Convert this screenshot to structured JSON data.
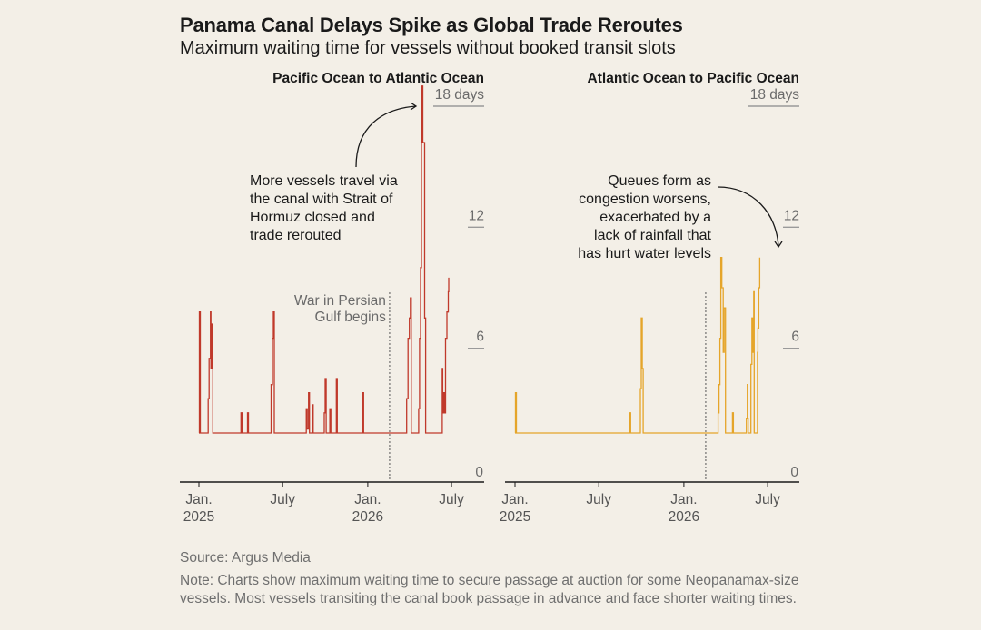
{
  "title": "Panama Canal Delays Spike as Global Trade Reroutes",
  "subtitle": "Maximum waiting time for vessels without booked transit slots",
  "source": "Source: Argus Media",
  "note": "Note: Charts show maximum waiting time to secure passage at auction for some Neopanamax-size vessels. Most vessels transiting the canal book passage in advance and face shorter waiting times.",
  "chart_data": [
    {
      "type": "line",
      "title": "Pacific Ocean to Atlantic Ocean",
      "color": "#c0392b",
      "y_unit": "days",
      "ylim": [
        0,
        18
      ],
      "y_ticks": [
        {
          "value": 0,
          "label": "0"
        },
        {
          "value": 6,
          "label": "6"
        },
        {
          "value": 12,
          "label": "12"
        },
        {
          "value": 18,
          "label": "18 days"
        }
      ],
      "x_ticks": [
        {
          "date": "2025-01-01",
          "line1": "Jan.",
          "line2": "2025"
        },
        {
          "date": "2025-07-01",
          "line1": "July",
          "line2": ""
        },
        {
          "date": "2026-01-01",
          "line1": "Jan.",
          "line2": "2026"
        },
        {
          "date": "2026-07-01",
          "line1": "July",
          "line2": ""
        }
      ],
      "event": {
        "date": "2026-03-01",
        "label_lines": [
          "War in Persian",
          "Gulf begins"
        ]
      },
      "annotation": {
        "lines": [
          "More vessels travel via",
          "the canal with Strait of",
          "Hormuz closed and",
          "trade rerouted"
        ]
      },
      "points": [
        [
          "2025-01-01",
          1.8
        ],
        [
          "2025-01-02",
          7.8
        ],
        [
          "2025-01-04",
          1.8
        ],
        [
          "2025-01-20",
          1.8
        ],
        [
          "2025-01-21",
          3.5
        ],
        [
          "2025-01-23",
          5.5
        ],
        [
          "2025-01-26",
          7.8
        ],
        [
          "2025-01-27",
          5.0
        ],
        [
          "2025-01-29",
          7.2
        ],
        [
          "2025-01-31",
          1.8
        ],
        [
          "2025-04-01",
          1.8
        ],
        [
          "2025-04-02",
          2.8
        ],
        [
          "2025-04-04",
          1.8
        ],
        [
          "2025-04-15",
          1.8
        ],
        [
          "2025-04-16",
          2.8
        ],
        [
          "2025-04-18",
          1.8
        ],
        [
          "2025-06-05",
          1.8
        ],
        [
          "2025-06-06",
          4.2
        ],
        [
          "2025-06-09",
          6.5
        ],
        [
          "2025-06-11",
          7.8
        ],
        [
          "2025-06-13",
          1.8
        ],
        [
          "2025-08-20",
          1.8
        ],
        [
          "2025-08-21",
          3.0
        ],
        [
          "2025-08-23",
          2.0
        ],
        [
          "2025-08-26",
          3.8
        ],
        [
          "2025-08-28",
          1.8
        ],
        [
          "2025-09-02",
          1.8
        ],
        [
          "2025-09-03",
          3.2
        ],
        [
          "2025-09-05",
          1.8
        ],
        [
          "2025-09-28",
          1.8
        ],
        [
          "2025-09-29",
          2.8
        ],
        [
          "2025-10-01",
          4.5
        ],
        [
          "2025-10-03",
          1.8
        ],
        [
          "2025-10-10",
          1.8
        ],
        [
          "2025-10-11",
          3.0
        ],
        [
          "2025-10-13",
          1.8
        ],
        [
          "2025-10-24",
          1.8
        ],
        [
          "2025-10-25",
          4.5
        ],
        [
          "2025-10-27",
          1.8
        ],
        [
          "2025-12-20",
          1.8
        ],
        [
          "2025-12-21",
          3.8
        ],
        [
          "2025-12-23",
          1.8
        ],
        [
          "2026-03-25",
          1.8
        ],
        [
          "2026-03-26",
          3.5
        ],
        [
          "2026-03-29",
          6.5
        ],
        [
          "2026-04-01",
          7.5
        ],
        [
          "2026-04-03",
          8.5
        ],
        [
          "2026-04-05",
          1.8
        ],
        [
          "2026-04-20",
          1.8
        ],
        [
          "2026-04-21",
          3.0
        ],
        [
          "2026-04-23",
          6.5
        ],
        [
          "2026-04-25",
          10.0
        ],
        [
          "2026-04-27",
          16.2
        ],
        [
          "2026-04-28",
          19.0
        ],
        [
          "2026-04-30",
          16.2
        ],
        [
          "2026-05-04",
          7.5
        ],
        [
          "2026-05-06",
          1.8
        ],
        [
          "2026-06-10",
          1.8
        ],
        [
          "2026-06-11",
          5.0
        ],
        [
          "2026-06-12",
          2.8
        ],
        [
          "2026-06-14",
          3.8
        ],
        [
          "2026-06-16",
          2.8
        ],
        [
          "2026-06-18",
          6.5
        ],
        [
          "2026-06-21",
          7.8
        ],
        [
          "2026-06-24",
          8.8
        ],
        [
          "2026-06-25",
          9.5
        ]
      ]
    },
    {
      "type": "line",
      "title": "Atlantic Ocean to Pacific Ocean",
      "color": "#e5a52a",
      "y_unit": "days",
      "ylim": [
        0,
        18
      ],
      "y_ticks": [
        {
          "value": 0,
          "label": "0"
        },
        {
          "value": 6,
          "label": "6"
        },
        {
          "value": 12,
          "label": "12"
        },
        {
          "value": 18,
          "label": "18 days"
        }
      ],
      "x_ticks": [
        {
          "date": "2025-01-01",
          "line1": "Jan.",
          "line2": "2025"
        },
        {
          "date": "2025-07-01",
          "line1": "July",
          "line2": ""
        },
        {
          "date": "2026-01-01",
          "line1": "Jan.",
          "line2": "2026"
        },
        {
          "date": "2026-07-01",
          "line1": "July",
          "line2": ""
        }
      ],
      "event": {
        "date": "2026-03-01",
        "label_lines": []
      },
      "annotation": {
        "lines": [
          "Queues form as",
          "congestion worsens,",
          "exacerbated by a",
          "lack of rainfall that",
          "has hurt water levels"
        ]
      },
      "points": [
        [
          "2025-01-01",
          1.8
        ],
        [
          "2025-01-02",
          3.8
        ],
        [
          "2025-01-04",
          1.8
        ],
        [
          "2025-09-05",
          1.8
        ],
        [
          "2025-09-06",
          2.8
        ],
        [
          "2025-09-08",
          1.8
        ],
        [
          "2025-09-28",
          1.8
        ],
        [
          "2025-09-29",
          4.0
        ],
        [
          "2025-10-01",
          7.5
        ],
        [
          "2025-10-03",
          5.0
        ],
        [
          "2025-10-05",
          1.8
        ],
        [
          "2026-03-15",
          1.8
        ],
        [
          "2026-03-16",
          2.8
        ],
        [
          "2026-03-18",
          4.2
        ],
        [
          "2026-03-20",
          6.5
        ],
        [
          "2026-03-22",
          10.5
        ],
        [
          "2026-03-24",
          9.0
        ],
        [
          "2026-03-27",
          5.8
        ],
        [
          "2026-03-29",
          8.0
        ],
        [
          "2026-04-01",
          1.8
        ],
        [
          "2026-04-15",
          1.8
        ],
        [
          "2026-04-16",
          2.8
        ],
        [
          "2026-04-18",
          1.8
        ],
        [
          "2026-05-15",
          1.8
        ],
        [
          "2026-05-16",
          2.5
        ],
        [
          "2026-05-18",
          4.2
        ],
        [
          "2026-05-19",
          2.5
        ],
        [
          "2026-05-20",
          1.8
        ],
        [
          "2026-05-25",
          1.8
        ],
        [
          "2026-05-26",
          5.2
        ],
        [
          "2026-05-28",
          7.5
        ],
        [
          "2026-05-30",
          5.8
        ],
        [
          "2026-06-01",
          8.8
        ],
        [
          "2026-06-02",
          1.8
        ],
        [
          "2026-06-08",
          1.8
        ],
        [
          "2026-06-09",
          5.8
        ],
        [
          "2026-06-10",
          7.0
        ],
        [
          "2026-06-12",
          9.0
        ],
        [
          "2026-06-14",
          10.5
        ]
      ]
    }
  ]
}
